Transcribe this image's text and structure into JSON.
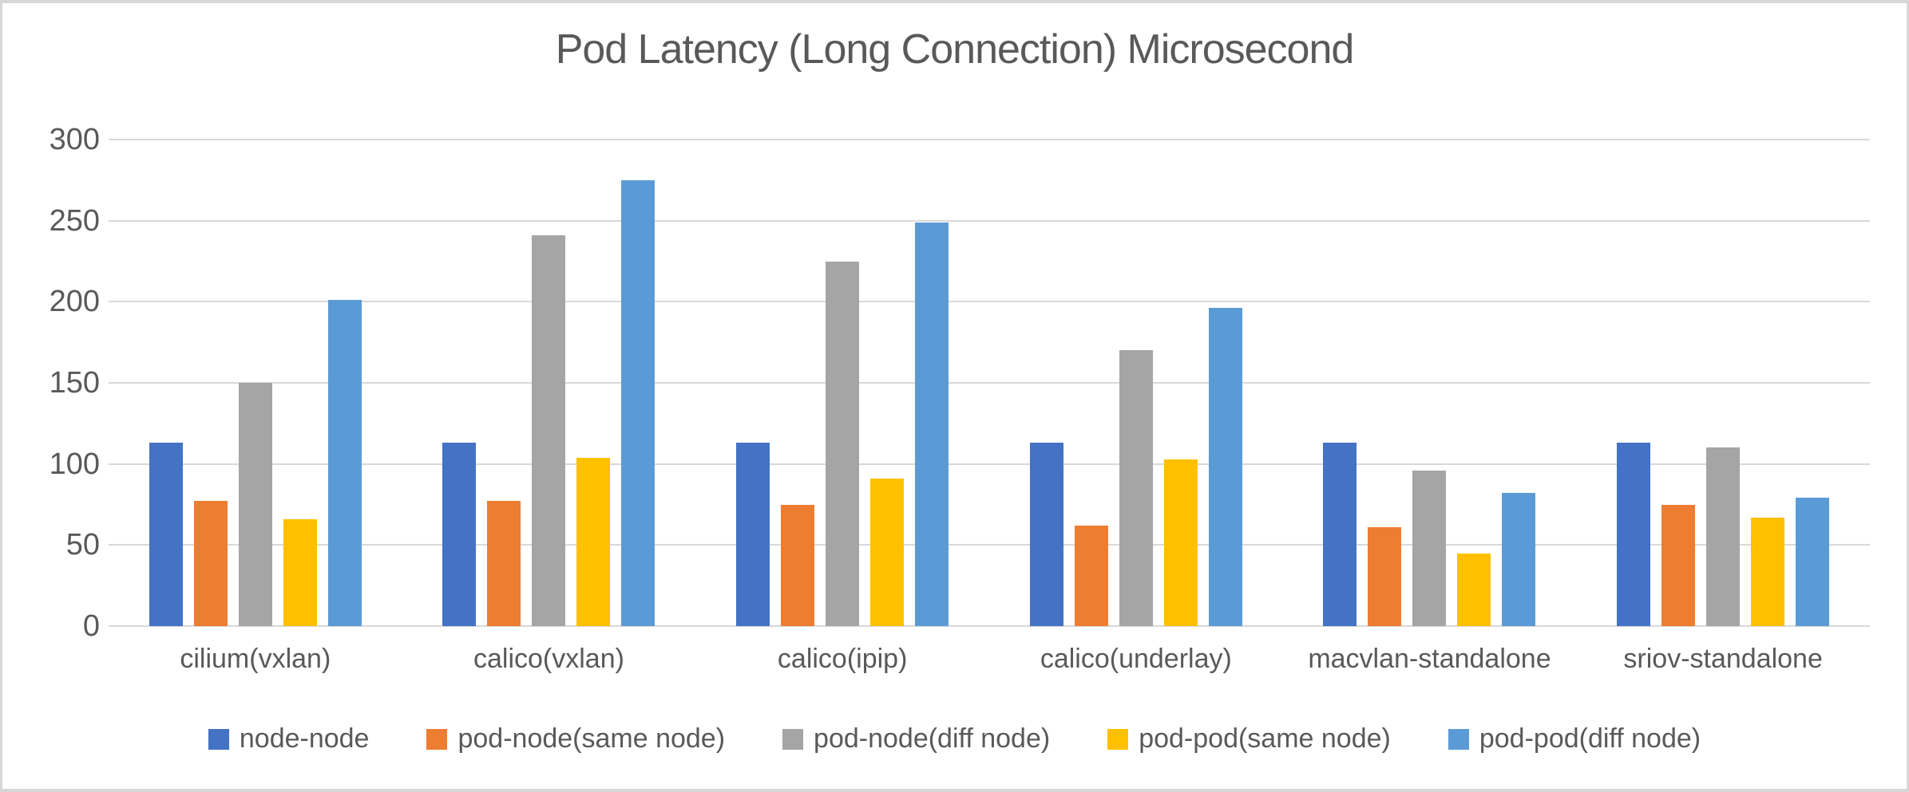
{
  "chart_data": {
    "type": "bar",
    "title": "Pod Latency (Long Connection) Microsecond",
    "xlabel": "",
    "ylabel": "",
    "categories": [
      "cilium(vxlan)",
      "calico(vxlan)",
      "calico(ipip)",
      "calico(underlay)",
      "macvlan-standalone",
      "sriov-standalone"
    ],
    "series": [
      {
        "name": "node-node",
        "color": "#4472C4",
        "values": [
          113,
          113,
          113,
          113,
          113,
          113
        ]
      },
      {
        "name": "pod-node(same node)",
        "color": "#ED7D31",
        "values": [
          77,
          77,
          75,
          62,
          61,
          75
        ]
      },
      {
        "name": "pod-node(diff node)",
        "color": "#A5A5A5",
        "values": [
          150,
          241,
          225,
          170,
          96,
          110
        ]
      },
      {
        "name": "pod-pod(same node)",
        "color": "#FFC000",
        "values": [
          66,
          104,
          91,
          103,
          45,
          67
        ]
      },
      {
        "name": "pod-pod(diff node)",
        "color": "#5B9BD5",
        "values": [
          201,
          275,
          249,
          196,
          82,
          79
        ]
      }
    ],
    "ylim": [
      0,
      300
    ],
    "ytick_step": 50,
    "yticks": [
      "0",
      "50",
      "100",
      "150",
      "200",
      "250",
      "300"
    ],
    "grid": true,
    "legend_position": "bottom",
    "text_color": "#595959",
    "gridline_color": "#d9d9d9"
  }
}
